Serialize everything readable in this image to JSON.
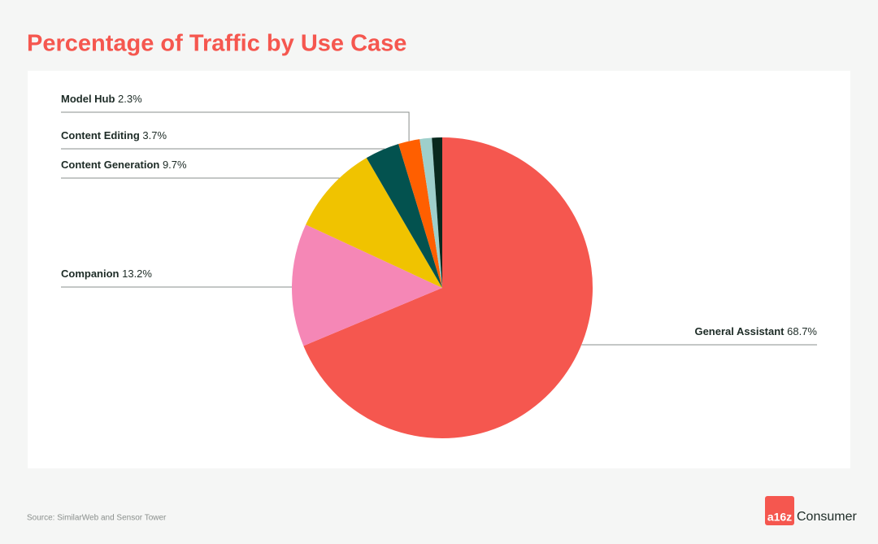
{
  "chart_data": {
    "type": "pie",
    "title": "Percentage of Traffic by Use Case",
    "categories": [
      "General Assistant",
      "Companion",
      "Content Generation",
      "Content Editing",
      "Model Hub",
      null,
      null
    ],
    "values": [
      68.7,
      13.2,
      9.7,
      3.7,
      2.3,
      1.3,
      1.1
    ],
    "value_labels": [
      "68.7%",
      "13.2%",
      "9.7%",
      "3.7%",
      "2.3%",
      null,
      null
    ],
    "colors": [
      "#f5574f",
      "#f587b6",
      "#f0c300",
      "#03524f",
      "#ff5f00",
      "#9ecfcb",
      "#08291e"
    ],
    "source": "Source: SimilarWeb and Sensor Tower"
  },
  "logo": {
    "mark": "a16z",
    "text": "Consumer"
  }
}
